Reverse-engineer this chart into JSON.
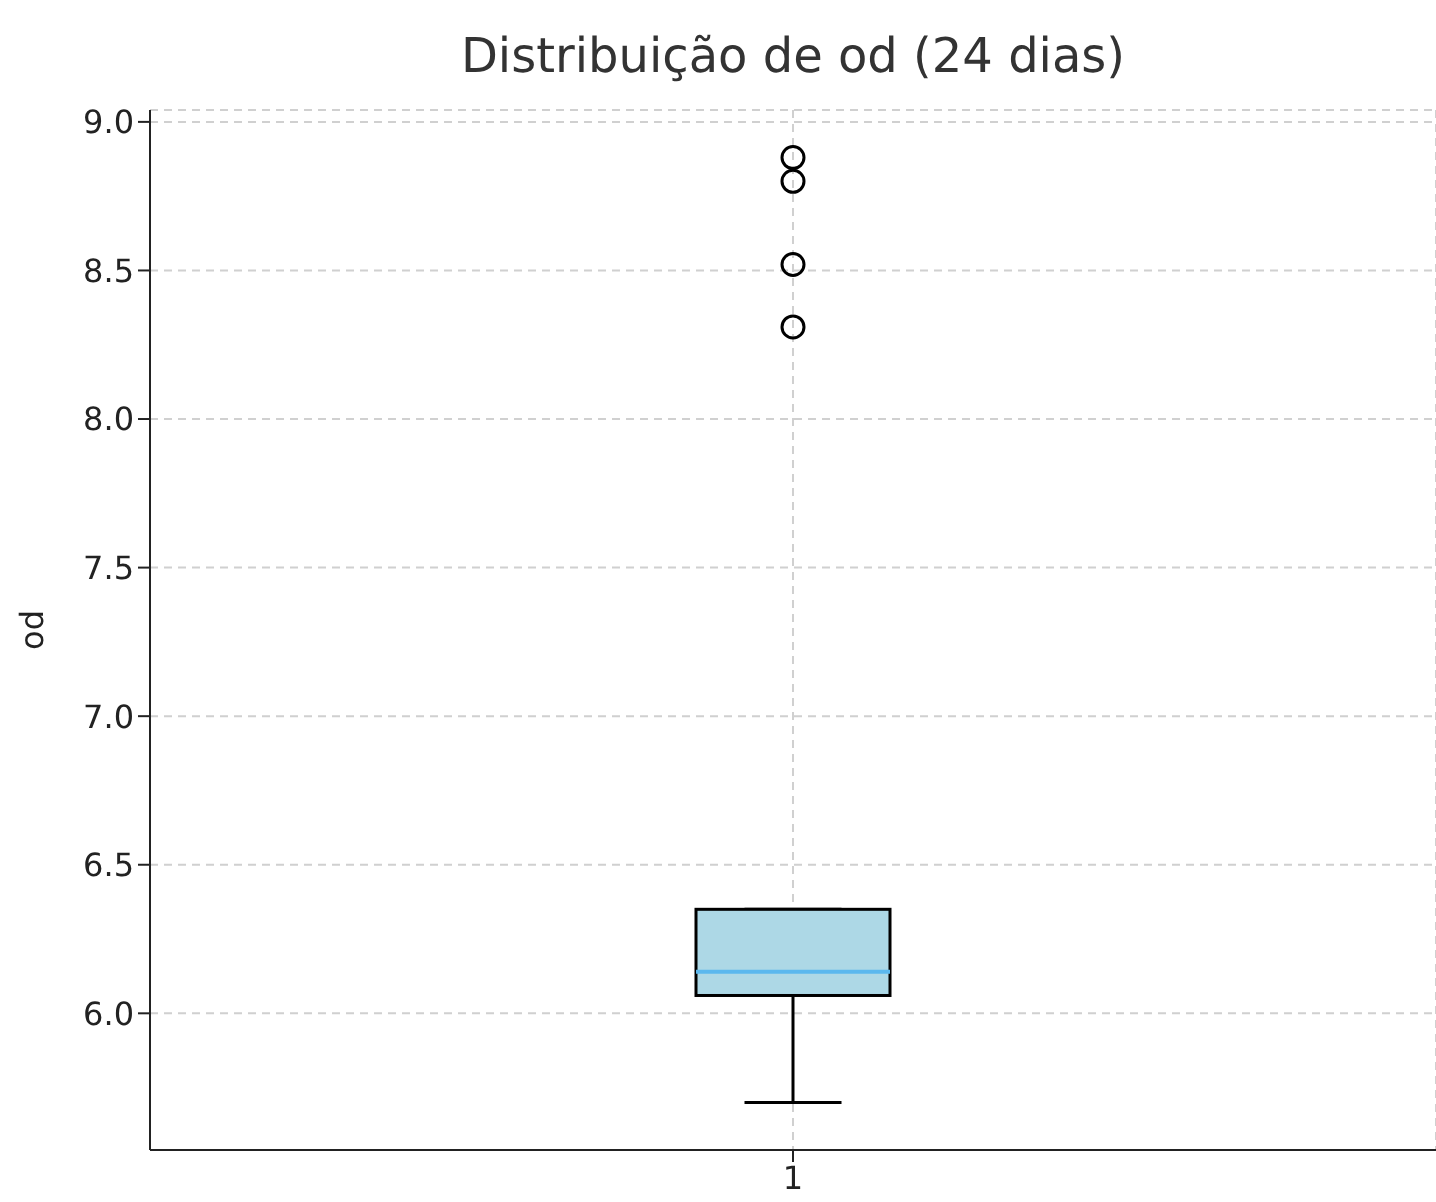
{
  "chart_data": {
    "type": "box",
    "title": "Distribuição de od (24 dias)",
    "ylabel": "od",
    "categories": [
      "1"
    ],
    "series": [
      {
        "color": "#add8e6",
        "boxes": [
          {
            "low": 5.7,
            "q1": 6.06,
            "median": 6.14,
            "q3": 6.35,
            "high": 6.35,
            "outliers": [
              8.88,
              8.8,
              8.52,
              8.31
            ]
          }
        ]
      }
    ],
    "ylim": [
      5.54,
      9.04
    ],
    "yticks": [
      {
        "value": 6,
        "label": "6.0"
      },
      {
        "value": 6.5,
        "label": "6.5"
      },
      {
        "value": 7,
        "label": "7.0"
      },
      {
        "value": 7.5,
        "label": "7.5"
      },
      {
        "value": 8,
        "label": "8.0"
      },
      {
        "value": 8.5,
        "label": "8.5"
      },
      {
        "value": 9,
        "label": "9.0"
      }
    ],
    "grid": true
  }
}
